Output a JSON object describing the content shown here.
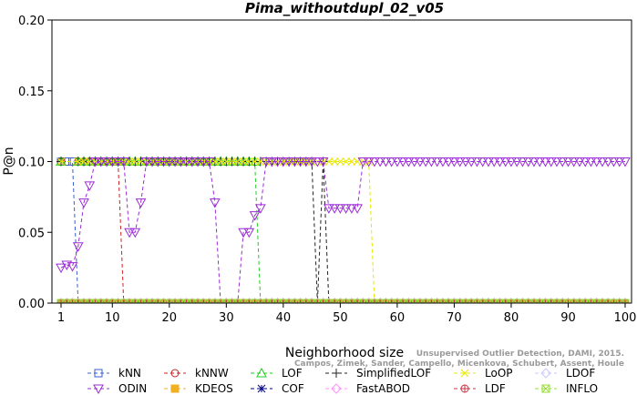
{
  "chart_data": {
    "type": "line",
    "title": "Pima_withoutdupl_02_v05",
    "xlabel": "Neighborhood size",
    "ylabel": "P@n",
    "xlim": [
      1,
      100
    ],
    "ylim": [
      0,
      0.2
    ],
    "x_ticks": [
      1,
      10,
      20,
      30,
      40,
      50,
      60,
      70,
      80,
      90,
      100
    ],
    "y_ticks": [
      "0.00",
      "0.05",
      "0.10",
      "0.15",
      "0.20"
    ],
    "grid": false,
    "legend_position": "bottom",
    "credit_line1": "Unsupervised Outlier Detection, DAMI, 2015.",
    "credit_line2": "Campos, Zimek, Sander, Campello, Micenkova, Schubert, Assent, Houle",
    "series": [
      {
        "name": "kNN",
        "color": "#3a5fcd",
        "marker": "square",
        "segments": [
          {
            "x": [
              1,
              2,
              3
            ],
            "y": [
              0.1,
              0.1,
              0.1
            ]
          },
          {
            "x": [
              4,
              100
            ],
            "y": [
              0,
              0
            ]
          }
        ]
      },
      {
        "name": "kNNW",
        "color": "#d02020",
        "marker": "circle",
        "segments": [
          {
            "x": [
              1
            ],
            "y": [
              0.1
            ]
          },
          {
            "x": [
              4,
              11
            ],
            "y": [
              0.1,
              0.1
            ]
          },
          {
            "x": [
              12,
              100
            ],
            "y": [
              0,
              0
            ]
          }
        ]
      },
      {
        "name": "LOF",
        "color": "#22cc22",
        "marker": "triangle-up",
        "segments": [
          {
            "x": [
              1
            ],
            "y": [
              0.1
            ]
          },
          {
            "x": [
              4,
              35
            ],
            "y": [
              0.1,
              0.1
            ]
          },
          {
            "x": [
              36,
              100
            ],
            "y": [
              0,
              0
            ]
          }
        ]
      },
      {
        "name": "SimplifiedLOF",
        "color": "#222222",
        "marker": "plus",
        "segments": [
          {
            "x": [
              1
            ],
            "y": [
              0.1
            ]
          },
          {
            "x": [
              4,
              45
            ],
            "y": [
              0.1,
              0.1
            ]
          },
          {
            "x": [
              46
            ],
            "y": [
              0
            ]
          },
          {
            "x": [
              47
            ],
            "y": [
              0.1
            ]
          },
          {
            "x": [
              48,
              100
            ],
            "y": [
              0,
              0
            ]
          }
        ]
      },
      {
        "name": "LoOP",
        "color": "#e8e800",
        "marker": "x",
        "segments": [
          {
            "x": [
              1
            ],
            "y": [
              0.1
            ]
          },
          {
            "x": [
              4,
              55
            ],
            "y": [
              0.1,
              0.1
            ]
          },
          {
            "x": [
              56,
              100
            ],
            "y": [
              0,
              0
            ]
          }
        ]
      },
      {
        "name": "LDOF",
        "color": "#c8c8ff",
        "marker": "diamond",
        "segments": [
          {
            "x": [
              1,
              100
            ],
            "y": [
              0,
              0
            ]
          }
        ]
      },
      {
        "name": "ODIN",
        "color": "#9a2bd6",
        "marker": "triangle-down",
        "segments": [
          {
            "x": [
              1,
              2,
              3,
              4,
              5,
              6,
              7,
              8,
              9,
              10,
              11,
              12,
              13,
              14,
              15,
              16,
              17,
              18,
              19,
              20,
              21,
              22,
              23,
              24,
              25,
              26,
              27,
              28,
              29,
              30,
              31,
              32,
              33,
              34,
              35,
              36,
              37,
              38,
              39,
              40,
              41,
              42,
              43,
              44,
              45,
              46,
              47,
              48,
              49,
              50,
              51,
              52,
              53,
              54,
              55,
              56,
              57,
              58,
              59,
              60,
              61,
              62,
              63,
              64,
              65,
              66,
              67,
              68,
              69,
              70,
              71,
              72,
              73,
              74,
              75,
              76,
              77,
              78,
              79,
              80,
              81,
              82,
              83,
              84,
              85,
              86,
              87,
              88,
              89,
              90,
              91,
              92,
              93,
              94,
              95,
              96,
              97,
              98,
              99,
              100
            ],
            "y": [
              0.025,
              0.027,
              0.026,
              0.04,
              0.071,
              0.083,
              0.1,
              0.1,
              0.1,
              0.1,
              0.1,
              0.1,
              0.05,
              0.05,
              0.071,
              0.1,
              0.1,
              0.1,
              0.1,
              0.1,
              0.1,
              0.1,
              0.1,
              0.1,
              0.1,
              0.1,
              0.1,
              0.071,
              0,
              0,
              0,
              0,
              0.05,
              0.05,
              0.062,
              0.067,
              0.1,
              0.1,
              0.1,
              0.1,
              0.1,
              0.1,
              0.1,
              0.1,
              0.1,
              0.1,
              0.1,
              0.067,
              0.067,
              0.067,
              0.067,
              0.067,
              0.067,
              0.1,
              0.1,
              0.1,
              0.1,
              0.1,
              0.1,
              0.1,
              0.1,
              0.1,
              0.1,
              0.1,
              0.1,
              0.1,
              0.1,
              0.1,
              0.1,
              0.1,
              0.1,
              0.1,
              0.1,
              0.1,
              0.1,
              0.1,
              0.1,
              0.1,
              0.1,
              0.1,
              0.1,
              0.1,
              0.1,
              0.1,
              0.1,
              0.1,
              0.1,
              0.1,
              0.1,
              0.1,
              0.1,
              0.1,
              0.1,
              0.1,
              0.1,
              0.1,
              0.1,
              0.1,
              0.1,
              0.1
            ]
          }
        ]
      },
      {
        "name": "KDEOS",
        "color": "#f0b020",
        "marker": "square-filled",
        "segments": [
          {
            "x": [
              1,
              100
            ],
            "y": [
              0,
              0
            ]
          }
        ]
      },
      {
        "name": "COF",
        "color": "#000080",
        "marker": "asterisk",
        "segments": [
          {
            "x": [
              1,
              100
            ],
            "y": [
              0,
              0
            ]
          }
        ]
      },
      {
        "name": "FastABOD",
        "color": "#ff90ff",
        "marker": "diamond",
        "segments": [
          {
            "x": [
              1,
              100
            ],
            "y": [
              0,
              0
            ]
          }
        ]
      },
      {
        "name": "LDF",
        "color": "#cc3344",
        "marker": "circle-plus",
        "segments": [
          {
            "x": [
              1,
              100
            ],
            "y": [
              0,
              0
            ]
          }
        ]
      },
      {
        "name": "INFLO",
        "color": "#99dd33",
        "marker": "square-x",
        "segments": [
          {
            "x": [
              1,
              100
            ],
            "y": [
              0,
              0
            ]
          }
        ]
      }
    ]
  }
}
